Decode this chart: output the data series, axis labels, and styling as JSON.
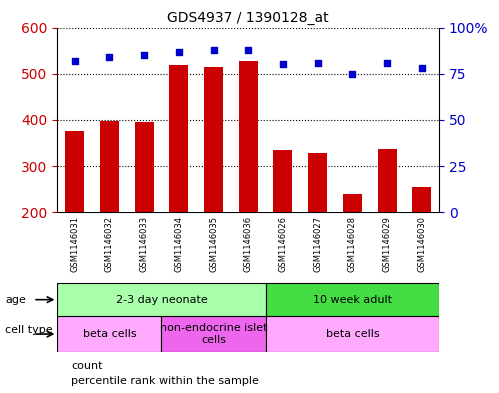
{
  "title": "GDS4937 / 1390128_at",
  "samples": [
    "GSM1146031",
    "GSM1146032",
    "GSM1146033",
    "GSM1146034",
    "GSM1146035",
    "GSM1146036",
    "GSM1146026",
    "GSM1146027",
    "GSM1146028",
    "GSM1146029",
    "GSM1146030"
  ],
  "counts": [
    375,
    397,
    395,
    518,
    515,
    528,
    335,
    328,
    240,
    337,
    254
  ],
  "percentiles": [
    82,
    84,
    85,
    87,
    88,
    88,
    80,
    81,
    75,
    81,
    78
  ],
  "bar_color": "#cc0000",
  "dot_color": "#0000cc",
  "ylim_left": [
    200,
    600
  ],
  "ylim_right": [
    0,
    100
  ],
  "yticks_left": [
    200,
    300,
    400,
    500,
    600
  ],
  "yticks_right": [
    0,
    25,
    50,
    75,
    100
  ],
  "age_groups": [
    {
      "label": "2-3 day neonate",
      "start": 0,
      "end": 6,
      "color": "#aaffaa"
    },
    {
      "label": "10 week adult",
      "start": 6,
      "end": 11,
      "color": "#44dd44"
    }
  ],
  "cell_type_groups": [
    {
      "label": "beta cells",
      "start": 0,
      "end": 3,
      "color": "#ffaaff"
    },
    {
      "label": "non-endocrine islet\ncells",
      "start": 3,
      "end": 6,
      "color": "#ee66ee"
    },
    {
      "label": "beta cells",
      "start": 6,
      "end": 11,
      "color": "#ffaaff"
    }
  ],
  "legend_items": [
    {
      "color": "#cc0000",
      "label": "count",
      "marker": "s"
    },
    {
      "color": "#0000cc",
      "label": "percentile rank within the sample",
      "marker": "s"
    }
  ],
  "background_color": "#ffffff",
  "plot_bg_color": "#ffffff",
  "grid_color": "#000000",
  "tick_label_color_left": "#cc0000",
  "tick_label_color_right": "#0000cc",
  "sample_bg_color": "#cccccc",
  "border_color": "#000000"
}
